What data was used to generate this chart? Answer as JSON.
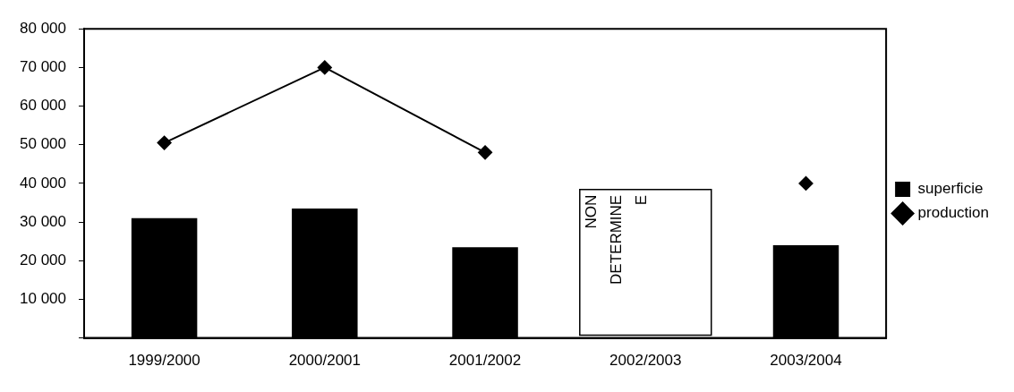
{
  "chart_data": {
    "type": "bar",
    "categories": [
      "1999/2000",
      "2000/2001",
      "2001/2002",
      "2002/2003",
      "2003/2004"
    ],
    "series": [
      {
        "name": "superficie",
        "color": "#000000",
        "values": [
          31000,
          33500,
          23500,
          null,
          24000
        ]
      },
      {
        "name": "production",
        "type": "line",
        "color": "#000000",
        "marker": "diamond",
        "values": [
          50500,
          70000,
          48000,
          null,
          40000
        ]
      }
    ],
    "ylim": [
      0,
      80000
    ],
    "yticks": [
      {
        "value": 0,
        "label": null
      },
      {
        "value": 10000,
        "label": "10 000"
      },
      {
        "value": 20000,
        "label": "20 000"
      },
      {
        "value": 30000,
        "label": "30 000"
      },
      {
        "value": 40000,
        "label": "40 000"
      },
      {
        "value": 50000,
        "label": "50 000"
      },
      {
        "value": 60000,
        "label": "60 000"
      },
      {
        "value": 70000,
        "label": "70 000"
      },
      {
        "value": 80000,
        "label": "80 000"
      }
    ],
    "annotations": [
      "NON DETERMINE E"
    ],
    "grid": false,
    "legend": "right"
  }
}
